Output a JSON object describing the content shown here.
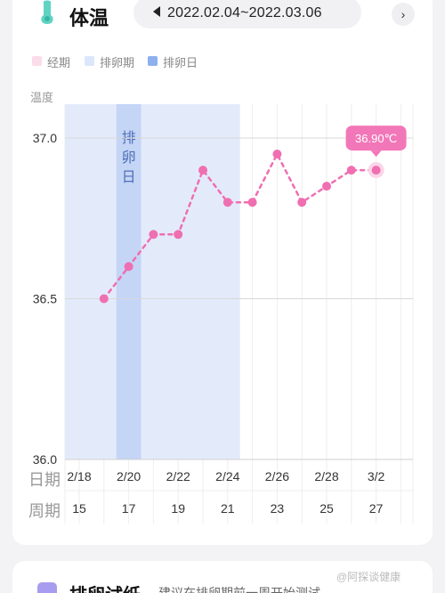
{
  "header": {
    "title": "体温",
    "date_range": "2022.02.04~2022.03.06",
    "prev_icon": "triangle-left-icon",
    "next_icon": "chevron-right-icon"
  },
  "legend": [
    {
      "label": "经期",
      "color": "#fbdce9"
    },
    {
      "label": "排卵期",
      "color": "#dde7fb"
    },
    {
      "label": "排卵日",
      "color": "#8fb0ef"
    }
  ],
  "chart_data": {
    "type": "line",
    "ylabel": "温度",
    "ylim": [
      36.0,
      37.0
    ],
    "yticks": [
      "37.0",
      "36.5",
      "36.0"
    ],
    "x_dates": [
      "2/18",
      "2/20",
      "2/22",
      "2/24",
      "2/26",
      "2/28",
      "3/2"
    ],
    "x_cycle_days": [
      "15",
      "17",
      "19",
      "21",
      "23",
      "25",
      "27"
    ],
    "row_label_date": "日期",
    "row_label_cycle": "周期",
    "ovulation_day_label": "排卵日",
    "ovulation_period_range": [
      "2/19",
      "2/24"
    ],
    "ovulation_day": "2/20",
    "series": [
      {
        "color": "#ef6fb1",
        "points": [
          {
            "x": "2/19",
            "y": 36.5
          },
          {
            "x": "2/20",
            "y": 36.6
          },
          {
            "x": "2/21",
            "y": 36.7
          },
          {
            "x": "2/22",
            "y": 36.7
          },
          {
            "x": "2/23",
            "y": 36.9
          },
          {
            "x": "2/24",
            "y": 36.8
          },
          {
            "x": "2/25",
            "y": 36.8
          },
          {
            "x": "2/26",
            "y": 36.95
          },
          {
            "x": "2/27",
            "y": 36.8
          },
          {
            "x": "2/28",
            "y": 36.85
          },
          {
            "x": "3/1",
            "y": 36.9
          },
          {
            "x": "3/2",
            "y": 36.9
          }
        ]
      }
    ],
    "highlight": {
      "x": "3/2",
      "label": "36.90℃"
    }
  },
  "bottom": {
    "title": "排卵试纸",
    "subtitle": "建议在排卵期前一周开始测试",
    "watermark": "@阿探谈健康"
  }
}
